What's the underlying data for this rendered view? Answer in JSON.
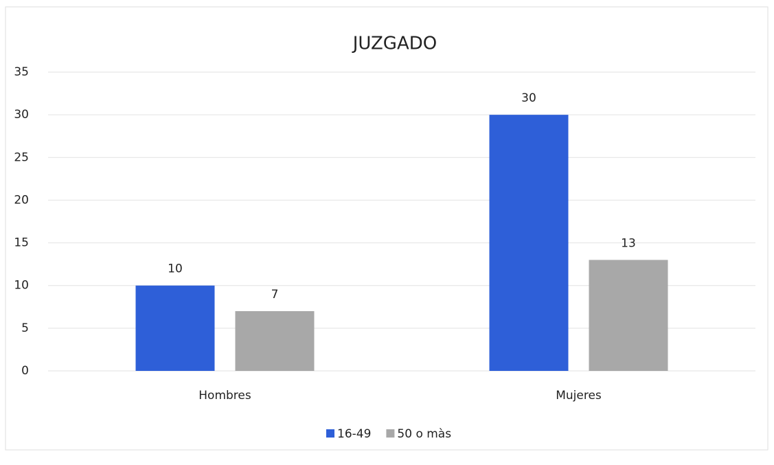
{
  "chart_data": {
    "type": "bar",
    "title": "JUZGADO",
    "categories": [
      "Hombres",
      "Mujeres"
    ],
    "series": [
      {
        "name": "16-49",
        "color": "#2e5fd8",
        "values": [
          10,
          30
        ]
      },
      {
        "name": "50 o màs",
        "color": "#a8a8a8",
        "values": [
          7,
          13
        ]
      }
    ],
    "ylim": [
      0,
      35
    ],
    "yticks": [
      0,
      5,
      10,
      15,
      20,
      25,
      30,
      35
    ],
    "grid": true,
    "legend": "bottom"
  }
}
